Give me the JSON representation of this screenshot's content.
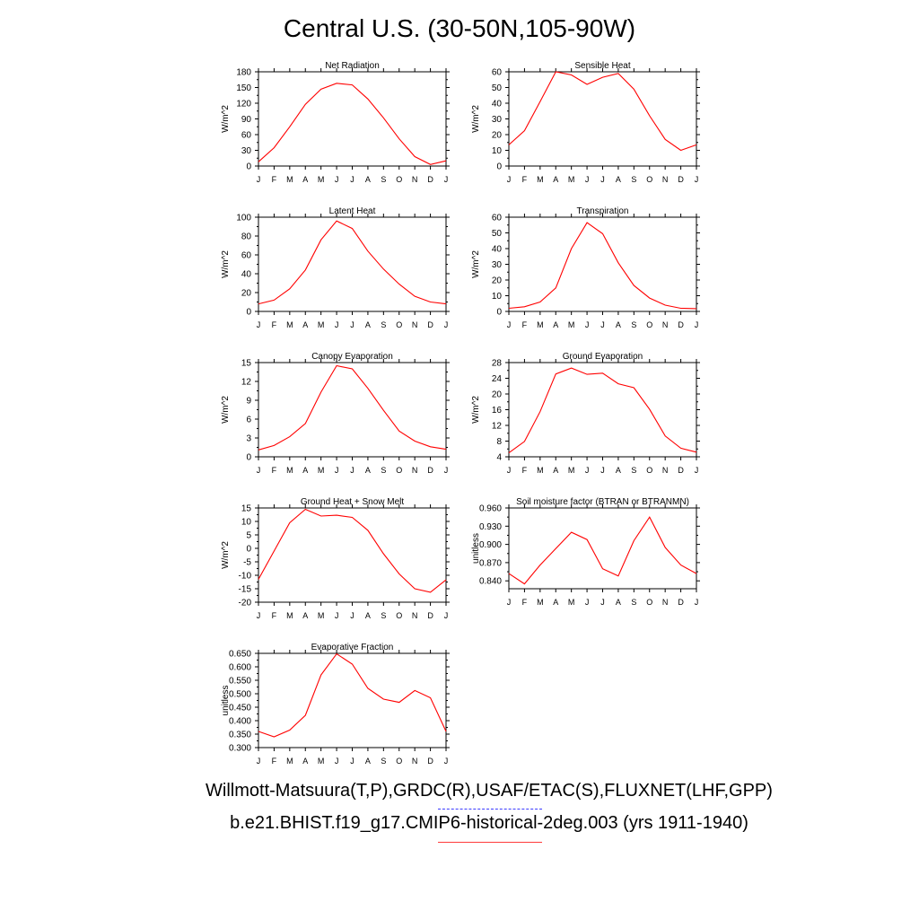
{
  "title": "Central U.S. (30-50N,105-90W)",
  "captions": {
    "observations": "Willmott-Matsuura(T,P),GRDC(R),USAF/ETAC(S),FLUXNET(LHF,GPP)",
    "model": "b.e21.BHIST.f19_g17.CMIP6-historical-2deg.003 (yrs 1911-1940)"
  },
  "colors": {
    "model_line": "#ff0000",
    "observation_line": "#3b3bff"
  },
  "chart_data": [
    {
      "type": "line",
      "title": "Net Radiation",
      "ylabel": "W/m^2",
      "categories": [
        "J",
        "F",
        "M",
        "A",
        "M",
        "J",
        "J",
        "A",
        "S",
        "O",
        "N",
        "D",
        "J"
      ],
      "ylim": [
        0,
        180
      ],
      "yticks": [
        "0",
        "30",
        "60",
        "90",
        "120",
        "150",
        "180"
      ],
      "series": [
        {
          "values": [
            8,
            35,
            75,
            118,
            147,
            158,
            155,
            128,
            92,
            52,
            18,
            3,
            10
          ]
        }
      ]
    },
    {
      "type": "line",
      "title": "Sensible Heat",
      "ylabel": "W/m^2",
      "categories": [
        "J",
        "F",
        "M",
        "A",
        "M",
        "J",
        "J",
        "A",
        "S",
        "O",
        "N",
        "D",
        "J"
      ],
      "ylim": [
        0,
        60
      ],
      "yticks": [
        "0",
        "10",
        "20",
        "30",
        "40",
        "50",
        "60"
      ],
      "series": [
        {
          "values": [
            13.5,
            22.5,
            41,
            60,
            58,
            52,
            56.5,
            59,
            49,
            32,
            17,
            10,
            13.5
          ]
        }
      ]
    },
    {
      "type": "line",
      "title": "Latent Heat",
      "ylabel": "W/m^2",
      "categories": [
        "J",
        "F",
        "M",
        "A",
        "M",
        "J",
        "J",
        "A",
        "S",
        "O",
        "N",
        "D",
        "J"
      ],
      "ylim": [
        0,
        100
      ],
      "yticks": [
        "0",
        "20",
        "40",
        "60",
        "80",
        "100"
      ],
      "series": [
        {
          "values": [
            8,
            12,
            24,
            44,
            76,
            96,
            88,
            64,
            45,
            29,
            16,
            10,
            8
          ]
        }
      ]
    },
    {
      "type": "line",
      "title": "Transpiration",
      "ylabel": "W/m^2",
      "categories": [
        "J",
        "F",
        "M",
        "A",
        "M",
        "J",
        "J",
        "A",
        "S",
        "O",
        "N",
        "D",
        "J"
      ],
      "ylim": [
        0,
        60
      ],
      "yticks": [
        "0",
        "10",
        "20",
        "30",
        "40",
        "50",
        "60"
      ],
      "series": [
        {
          "values": [
            2,
            3,
            6,
            15,
            40,
            56.5,
            49.5,
            31,
            16.5,
            8.5,
            4,
            2,
            1.8
          ]
        }
      ]
    },
    {
      "type": "line",
      "title": "Canopy Evaporation",
      "ylabel": "W/m^2",
      "categories": [
        "J",
        "F",
        "M",
        "A",
        "M",
        "J",
        "J",
        "A",
        "S",
        "O",
        "N",
        "D",
        "J"
      ],
      "ylim": [
        0,
        15
      ],
      "yticks": [
        "0",
        "3",
        "6",
        "9",
        "12",
        "15"
      ],
      "series": [
        {
          "values": [
            1.1,
            1.8,
            3.2,
            5.3,
            10.3,
            14.5,
            14,
            10.9,
            7.4,
            4.1,
            2.5,
            1.6,
            1.2
          ]
        }
      ]
    },
    {
      "type": "line",
      "title": "Ground Evaporation",
      "ylabel": "W/m^2",
      "categories": [
        "J",
        "F",
        "M",
        "A",
        "M",
        "J",
        "J",
        "A",
        "S",
        "O",
        "N",
        "D",
        "J"
      ],
      "ylim": [
        4,
        28
      ],
      "yticks": [
        "4",
        "8",
        "12",
        "16",
        "20",
        "24",
        "28"
      ],
      "series": [
        {
          "values": [
            5,
            7.9,
            15.5,
            25.1,
            26.6,
            25,
            25.3,
            22.6,
            21.6,
            16.1,
            9.3,
            6.2,
            5.2
          ]
        }
      ]
    },
    {
      "type": "line",
      "title": "Ground Heat + Snow Melt",
      "ylabel": "W/m^2",
      "categories": [
        "J",
        "F",
        "M",
        "A",
        "M",
        "J",
        "J",
        "A",
        "S",
        "O",
        "N",
        "D",
        "J"
      ],
      "ylim": [
        -20,
        15
      ],
      "yticks": [
        "-20",
        "-15",
        "-10",
        "-5",
        "0",
        "5",
        "10",
        "15"
      ],
      "series": [
        {
          "values": [
            -11.5,
            -1,
            9.5,
            14.5,
            12,
            12.3,
            11.5,
            6.7,
            -2,
            -9.5,
            -15,
            -16.3,
            -11.7
          ]
        }
      ]
    },
    {
      "type": "line",
      "title": "Soil moisture factor (BTRAN or BTRANMN)",
      "ylabel": "unitless",
      "categories": [
        "J",
        "F",
        "M",
        "A",
        "M",
        "J",
        "J",
        "A",
        "S",
        "O",
        "N",
        "D",
        "J"
      ],
      "ylim": [
        0.827,
        0.96
      ],
      "yticks": [
        "0.840",
        "0.870",
        "0.900",
        "0.930",
        "0.960"
      ],
      "series": [
        {
          "values": [
            0.852,
            0.835,
            0.866,
            0.893,
            0.92,
            0.908,
            0.86,
            0.848,
            0.906,
            0.945,
            0.895,
            0.866,
            0.852
          ]
        }
      ]
    },
    {
      "type": "line",
      "title": "Evaporative Fraction",
      "ylabel": "unitless",
      "categories": [
        "J",
        "F",
        "M",
        "A",
        "M",
        "J",
        "J",
        "A",
        "S",
        "O",
        "N",
        "D",
        "J"
      ],
      "ylim": [
        0.3,
        0.65
      ],
      "yticks": [
        "0.300",
        "0.350",
        "0.400",
        "0.450",
        "0.500",
        "0.550",
        "0.600",
        "0.650"
      ],
      "series": [
        {
          "values": [
            0.36,
            0.34,
            0.365,
            0.42,
            0.57,
            0.648,
            0.61,
            0.52,
            0.48,
            0.468,
            0.512,
            0.485,
            0.36
          ]
        }
      ]
    }
  ]
}
